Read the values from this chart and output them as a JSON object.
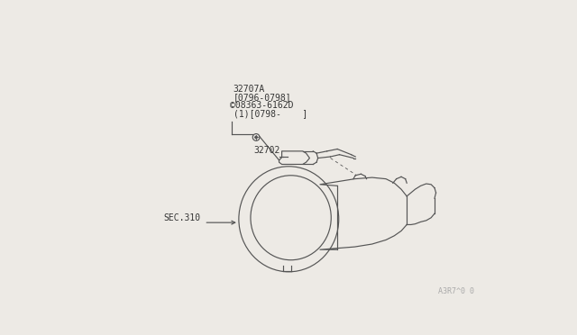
{
  "bg_color": "#edeae5",
  "line_color": "#555555",
  "text_color": "#333333",
  "label_32707A": "32707A",
  "label_part_range": "[0796-0798]",
  "label_circle_s": "©",
  "label_part_num": "08363-6162D",
  "label_date": "(1)[0798-    ]",
  "label_32702": "32702",
  "label_sec310": "SEC.310",
  "watermark": "A3R7^0 0",
  "font_size": 7.0,
  "font_size_wm": 6.0,
  "lw": 0.85
}
